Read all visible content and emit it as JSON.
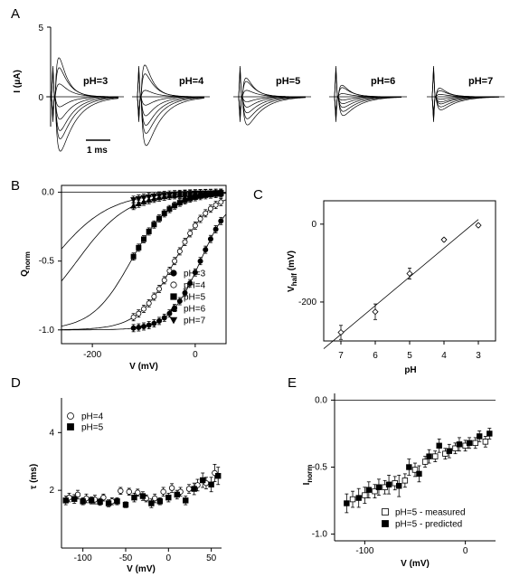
{
  "panel_labels": [
    "A",
    "B",
    "C",
    "D",
    "E"
  ],
  "chart_data": [
    {
      "panel": "A",
      "type": "line",
      "ylabel": "I (μA)",
      "yticks": [
        5,
        0
      ],
      "scalebar_label": "1 ms",
      "groups": [
        {
          "label": "pH=3",
          "peaks": [
            2.7,
            1.9,
            0.8,
            -0.6,
            -1.3,
            -1.9,
            -2.3,
            -2.9
          ]
        },
        {
          "label": "pH=4",
          "peaks": [
            2.2,
            1.5,
            0.4,
            -0.5,
            -1.1,
            -1.6,
            -2.0,
            -2.6
          ]
        },
        {
          "label": "pH=5",
          "peaks": [
            1.3,
            1.0,
            0.4,
            -0.3,
            -0.6,
            -0.9,
            -1.2,
            -1.5
          ]
        },
        {
          "label": "pH=6",
          "peaks": [
            0.8,
            0.6,
            0.2,
            -0.2,
            -0.4,
            -0.6,
            -0.8,
            -1.0
          ]
        },
        {
          "label": "pH=7",
          "peaks": [
            0.6,
            0.4,
            0.15,
            -0.15,
            -0.3,
            -0.4,
            -0.55,
            -0.7
          ]
        }
      ]
    },
    {
      "panel": "B",
      "type": "scatter",
      "xlabel": "V (mV)",
      "ylabel": "Q",
      "ylabel_sub": "norm",
      "xlim": [
        -260,
        60
      ],
      "ylim": [
        -1.1,
        0.05
      ],
      "xticks": [
        -200,
        0
      ],
      "yticks": [
        "0.0",
        "-0.5",
        "-1.0"
      ],
      "legend_position": "bottom-right",
      "series": [
        {
          "name": "pH=3",
          "marker": "circle-filled",
          "v_half": 10,
          "k": 30,
          "x": [
            -120,
            -110,
            -100,
            -90,
            -80,
            -70,
            -60,
            -50,
            -40,
            -30,
            -20,
            -10,
            0,
            10,
            20,
            30,
            40,
            50
          ]
        },
        {
          "name": "pH=4",
          "marker": "circle-open",
          "v_half": -40,
          "k": 35,
          "x": [
            -120,
            -110,
            -100,
            -90,
            -80,
            -70,
            -60,
            -50,
            -40,
            -30,
            -20,
            -10,
            0,
            10,
            20,
            30,
            40,
            50
          ]
        },
        {
          "name": "pH=5",
          "marker": "square-filled",
          "v_half": -125,
          "k": 38,
          "x": [
            -120,
            -110,
            -100,
            -90,
            -80,
            -70,
            -60,
            -50,
            -40,
            -30,
            -20,
            -10,
            0,
            10,
            20,
            30,
            40,
            50
          ]
        },
        {
          "name": "pH=6",
          "marker": "triangle-up-filled",
          "v_half": -230,
          "k": 50,
          "x": [
            -120,
            -110,
            -100,
            -90,
            -80,
            -70,
            -60,
            -50,
            -40,
            -30,
            -20,
            -10,
            0,
            10,
            20,
            30,
            40,
            50
          ]
        },
        {
          "name": "pH=7",
          "marker": "triangle-down-filled",
          "v_half": -280,
          "k": 56,
          "x": [
            -120,
            -110,
            -100,
            -90,
            -80,
            -70,
            -60,
            -50,
            -40,
            -30,
            -20,
            -10,
            0,
            10,
            20,
            30,
            40,
            50
          ]
        }
      ]
    },
    {
      "panel": "C",
      "type": "scatter",
      "xlabel": "pH",
      "ylabel": "V",
      "ylabel_sub": "half",
      "ylabel_unit": " (mV)",
      "xlim": [
        7.5,
        2.5
      ],
      "ylim": [
        -300,
        60
      ],
      "xticks": [
        "7",
        "6",
        "5",
        "4",
        "3"
      ],
      "yticks": [
        "0",
        "-200"
      ],
      "points": [
        {
          "pH": 7,
          "v": -278,
          "err": 18
        },
        {
          "pH": 6,
          "v": -225,
          "err": 20
        },
        {
          "pH": 5,
          "v": -127,
          "err": 14
        },
        {
          "pH": 4,
          "v": -40,
          "err": 4
        },
        {
          "pH": 3,
          "v": -3,
          "err": 4
        }
      ],
      "fit_line": [
        [
          7.5,
          -320
        ],
        [
          3,
          12
        ]
      ]
    },
    {
      "panel": "D",
      "type": "scatter",
      "xlabel": "V (mV)",
      "ylabel": "τ (ms)",
      "xlim": [
        -125,
        62
      ],
      "ylim": [
        0,
        5.2
      ],
      "xticks": [
        -100,
        -50,
        0,
        50
      ],
      "yticks": [
        4,
        2
      ],
      "legend_position": "top-left",
      "series": [
        {
          "name": "pH=4",
          "marker": "circle-open",
          "x": [
            -116,
            -106,
            -96,
            -86,
            -76,
            -66,
            -56,
            -46,
            -36,
            -26,
            -16,
            -6,
            4,
            14,
            24,
            34,
            44,
            54
          ],
          "y": [
            1.75,
            1.85,
            1.72,
            1.68,
            1.75,
            1.62,
            1.98,
            1.95,
            1.92,
            1.72,
            1.72,
            1.95,
            2.08,
            1.95,
            2.05,
            2.18,
            2.25,
            2.6
          ],
          "err": [
            0.15,
            0.15,
            0.15,
            0.15,
            0.12,
            0.12,
            0.12,
            0.12,
            0.12,
            0.12,
            0.15,
            0.15,
            0.15,
            0.15,
            0.15,
            0.2,
            0.2,
            0.3
          ]
        },
        {
          "name": "pH=5",
          "marker": "square-filled",
          "x": [
            -120,
            -110,
            -100,
            -90,
            -80,
            -70,
            -60,
            -50,
            -40,
            -30,
            -20,
            -10,
            0,
            10,
            20,
            30,
            40,
            50,
            58
          ],
          "y": [
            1.65,
            1.7,
            1.62,
            1.65,
            1.6,
            1.55,
            1.62,
            1.5,
            1.75,
            1.8,
            1.55,
            1.62,
            1.75,
            1.85,
            1.65,
            2.05,
            2.35,
            2.2,
            2.5
          ],
          "err": [
            0.15,
            0.15,
            0.12,
            0.12,
            0.12,
            0.12,
            0.12,
            0.1,
            0.15,
            0.15,
            0.15,
            0.12,
            0.15,
            0.15,
            0.15,
            0.2,
            0.25,
            0.25,
            0.3
          ]
        }
      ]
    },
    {
      "panel": "E",
      "type": "scatter",
      "xlabel": "V (mV)",
      "ylabel": "I",
      "ylabel_sub": "norm",
      "xlim": [
        -130,
        30
      ],
      "ylim": [
        -1.05,
        0.05
      ],
      "xticks": [
        -100,
        0
      ],
      "yticks": [
        "0.0",
        "-0.5",
        "-1.0"
      ],
      "legend_position": "bottom-right",
      "series": [
        {
          "name": "pH=5 - measured",
          "marker": "square-open",
          "x": [
            -112,
            -100,
            -90,
            -80,
            -70,
            -60,
            -50,
            -40,
            -30,
            -20,
            -10,
            0,
            10,
            20
          ],
          "y": [
            -0.74,
            -0.71,
            -0.68,
            -0.65,
            -0.62,
            -0.6,
            -0.52,
            -0.46,
            -0.42,
            -0.4,
            -0.36,
            -0.34,
            -0.32,
            -0.31
          ],
          "err": [
            0.06,
            0.06,
            0.05,
            0.05,
            0.05,
            0.05,
            0.05,
            0.04,
            0.04,
            0.04,
            0.04,
            0.04,
            0.04,
            0.04
          ]
        },
        {
          "name": "pH=5 - predicted",
          "marker": "square-filled",
          "x": [
            -118,
            -106,
            -96,
            -86,
            -76,
            -66,
            -56,
            -46,
            -36,
            -26,
            -16,
            -6,
            4,
            14,
            24
          ],
          "y": [
            -0.77,
            -0.73,
            -0.67,
            -0.65,
            -0.63,
            -0.64,
            -0.5,
            -0.55,
            -0.42,
            -0.34,
            -0.38,
            -0.33,
            -0.32,
            -0.27,
            -0.25
          ],
          "err": [
            0.07,
            0.07,
            0.06,
            0.06,
            0.07,
            0.08,
            0.06,
            0.06,
            0.05,
            0.05,
            0.05,
            0.05,
            0.04,
            0.04,
            0.04
          ]
        }
      ]
    }
  ]
}
